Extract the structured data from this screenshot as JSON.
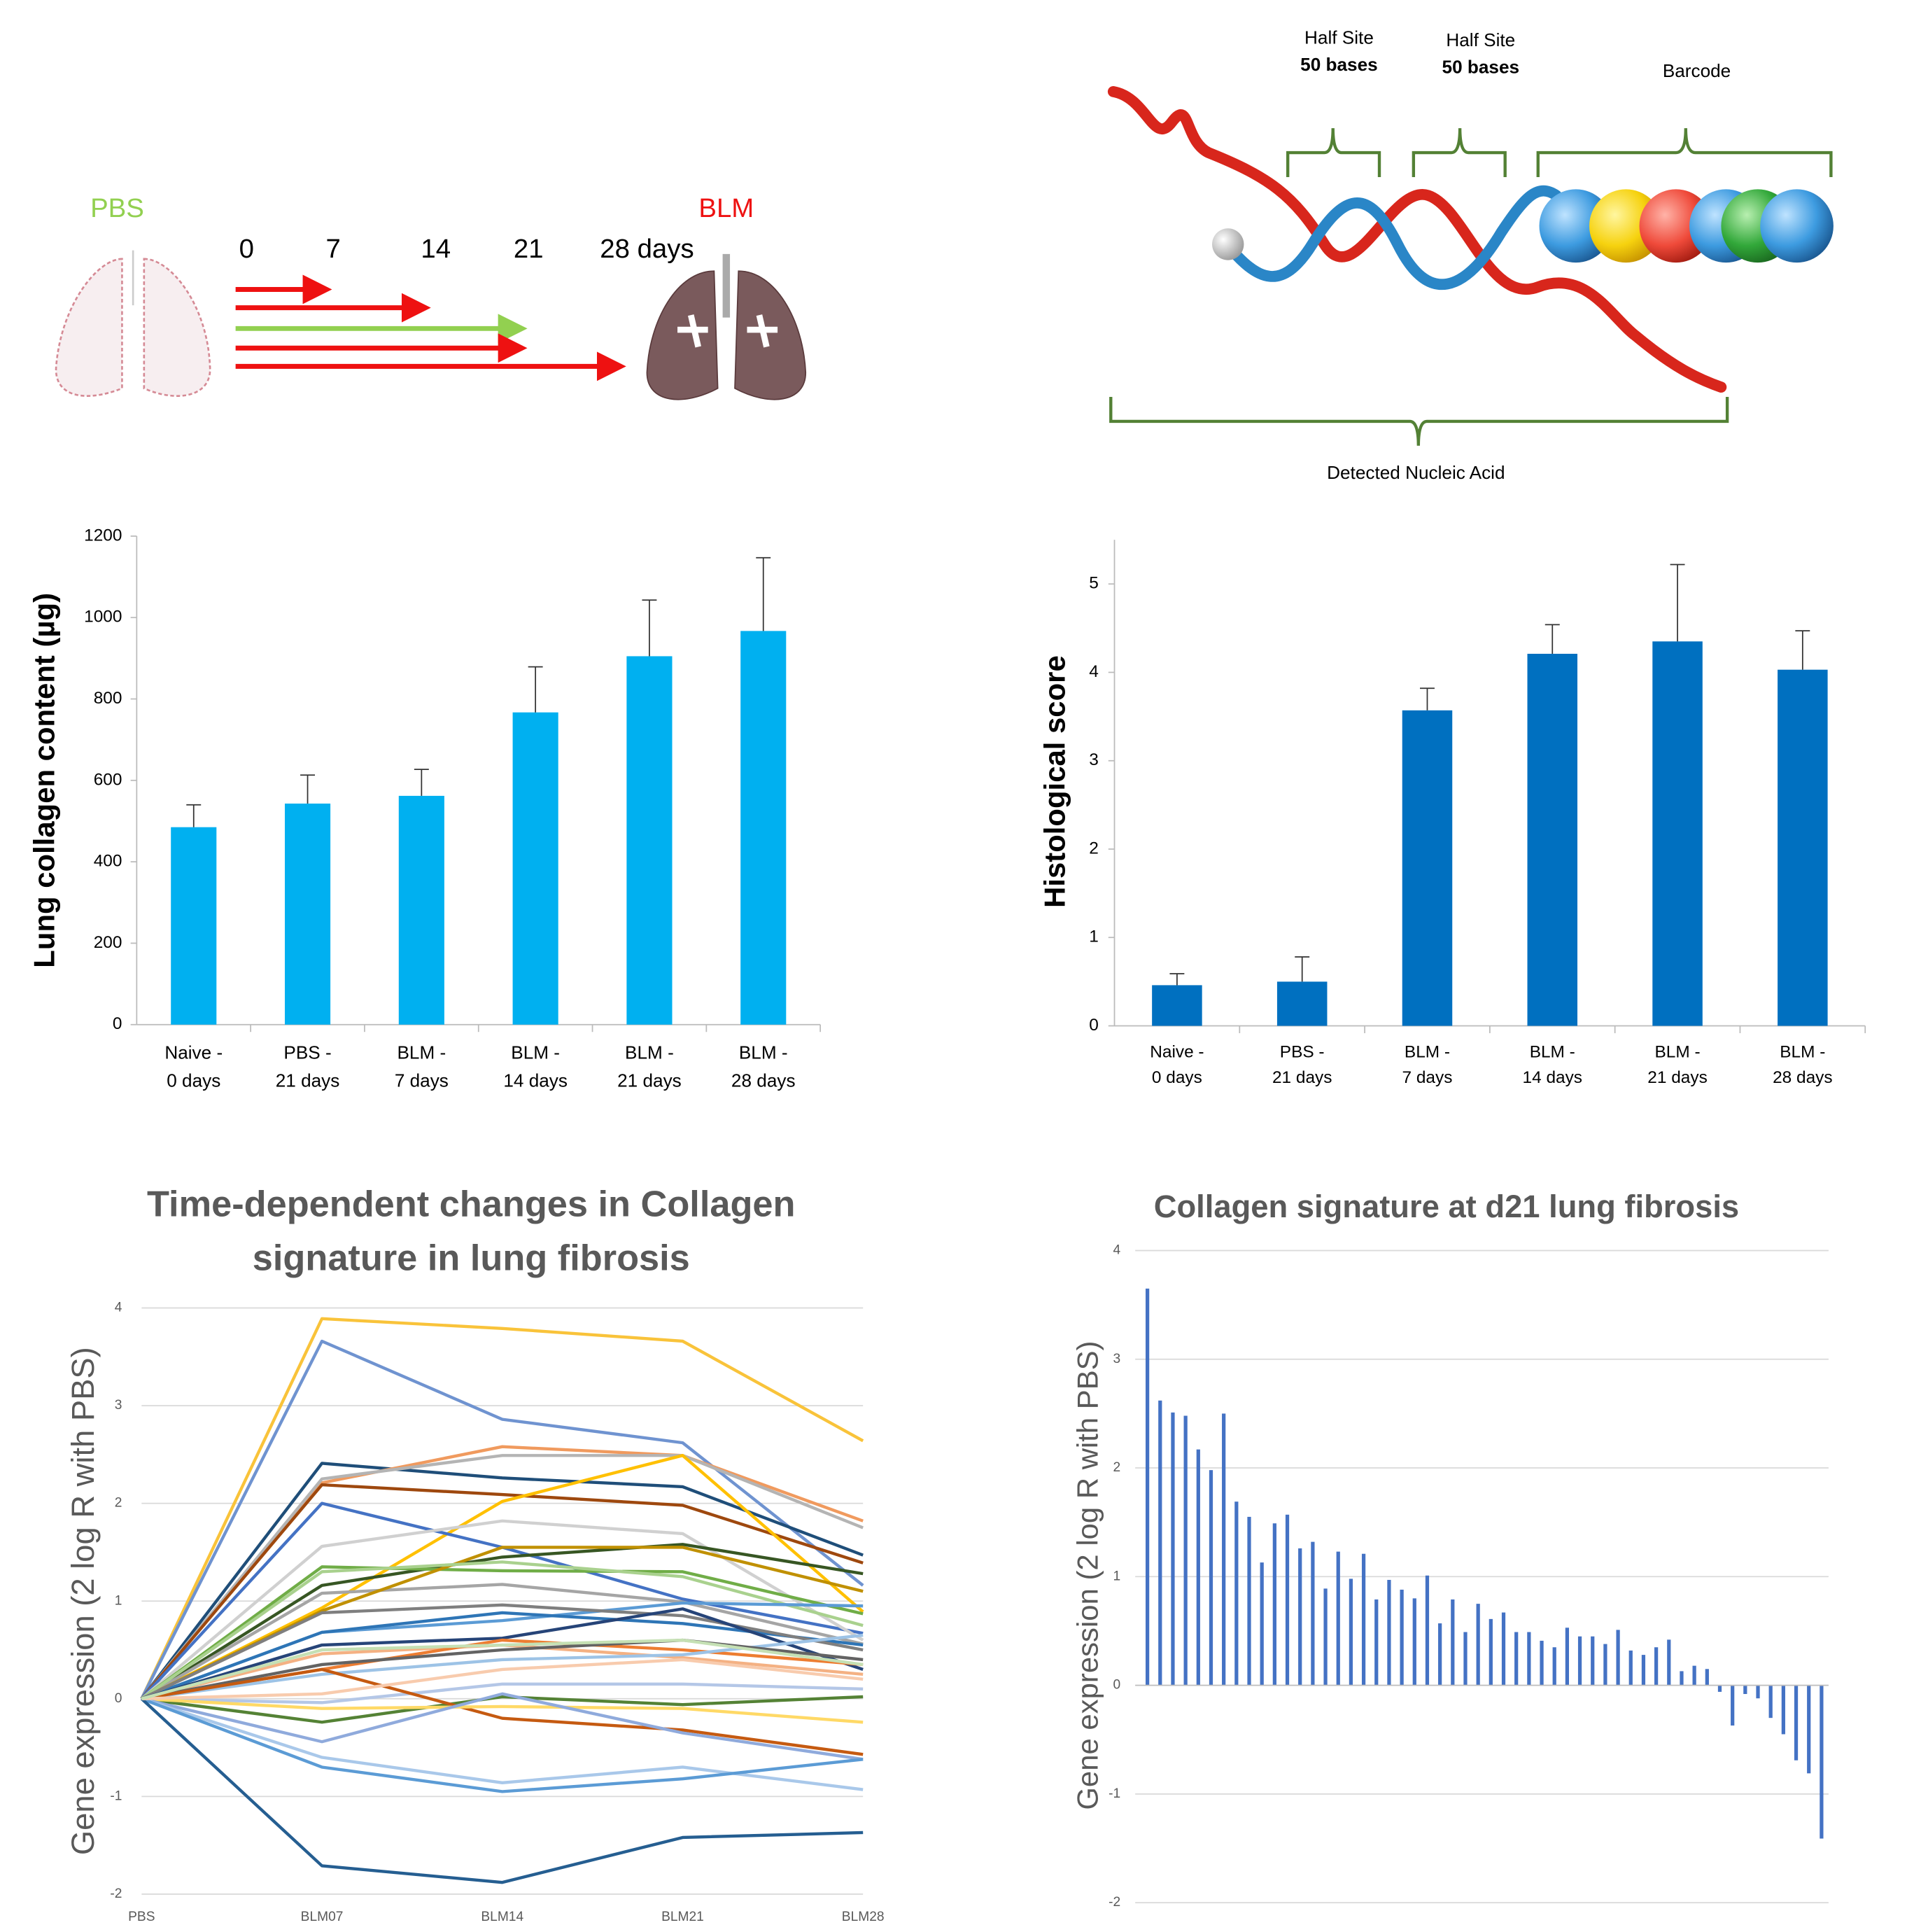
{
  "diagram_a": {
    "left_label": "PBS",
    "right_label": "BLM",
    "timepoints": [
      "0",
      "7",
      "14",
      "21",
      "28 days"
    ]
  },
  "diagram_b": {
    "half_site_1": {
      "title": "Half Site",
      "length": "50 bases"
    },
    "half_site_2": {
      "title": "Half Site",
      "length": "50 bases"
    },
    "barcode": "Barcode",
    "detected": "Detected Nucleic Acid"
  },
  "chart_data": [
    {
      "type": "bar",
      "ylabel": "Lung collagen content (µg)",
      "categories": [
        [
          "Naive -",
          "0 days"
        ],
        [
          "PBS -",
          "21 days"
        ],
        [
          "BLM -",
          "7 days"
        ],
        [
          "BLM -",
          "14 days"
        ],
        [
          "BLM -",
          "21 days"
        ],
        [
          "BLM -",
          "28 days"
        ]
      ],
      "values": [
        485,
        543,
        562,
        767,
        905,
        967
      ],
      "errors": [
        55,
        70,
        65,
        112,
        138,
        180
      ],
      "color": "#00b0f0",
      "ylim": [
        0,
        1200
      ],
      "yticks": [
        0,
        200,
        400,
        600,
        800,
        1000,
        1200
      ],
      "grid": false
    },
    {
      "type": "bar",
      "ylabel": "Histological score",
      "categories": [
        [
          "Naive -",
          "0 days"
        ],
        [
          "PBS -",
          "21 days"
        ],
        [
          "BLM -",
          "7 days"
        ],
        [
          "BLM -",
          "14 days"
        ],
        [
          "BLM -",
          "21 days"
        ],
        [
          "BLM -",
          "28 days"
        ]
      ],
      "values": [
        0.46,
        0.5,
        3.57,
        4.21,
        4.35,
        4.03
      ],
      "errors": [
        0.13,
        0.28,
        0.25,
        0.33,
        0.87,
        0.44
      ],
      "color": "#0070c0",
      "ylim": [
        0,
        5.5
      ],
      "yticks": [
        0,
        1,
        2,
        3,
        4,
        5
      ],
      "grid": false
    },
    {
      "type": "line",
      "title": [
        "Time-dependent changes in Collagen",
        "signature in lung fibrosis"
      ],
      "ylabel": "Gene expression (2 log R with PBS)",
      "categories": [
        "PBS",
        "BLM07",
        "BLM14",
        "BLM21",
        "BLM28"
      ],
      "ylim": [
        -2,
        4
      ],
      "yticks": [
        -2,
        -1,
        0,
        1,
        2,
        3,
        4
      ],
      "grid": true,
      "series": [
        {
          "color": "#f9c33a",
          "values": [
            0,
            3.89,
            3.79,
            3.66,
            2.64
          ]
        },
        {
          "color": "#6f93d0",
          "values": [
            0,
            3.66,
            2.86,
            2.62,
            1.16
          ]
        },
        {
          "color": "#1f4e79",
          "values": [
            0,
            2.41,
            2.26,
            2.17,
            1.47
          ]
        },
        {
          "color": "#f09a5e",
          "values": [
            0,
            2.21,
            2.58,
            2.49,
            1.82
          ]
        },
        {
          "color": "#b4b4b4",
          "values": [
            0,
            2.25,
            2.49,
            2.49,
            1.75
          ]
        },
        {
          "color": "#9e480e",
          "values": [
            0,
            2.19,
            2.09,
            1.98,
            1.39
          ]
        },
        {
          "color": "#ffc000",
          "values": [
            0,
            0.93,
            2.02,
            2.49,
            0.89
          ]
        },
        {
          "color": "#4472c4",
          "values": [
            0,
            2.0,
            1.55,
            1.02,
            0.67
          ]
        },
        {
          "color": "#d0d0d0",
          "values": [
            0,
            1.56,
            1.82,
            1.69,
            0.6
          ]
        },
        {
          "color": "#375623",
          "values": [
            0,
            1.16,
            1.45,
            1.58,
            1.28
          ]
        },
        {
          "color": "#70ad47",
          "values": [
            0,
            1.35,
            1.31,
            1.3,
            0.87
          ]
        },
        {
          "color": "#a5a5a5",
          "values": [
            0,
            1.08,
            1.17,
            0.99,
            0.56
          ]
        },
        {
          "color": "#c09000",
          "values": [
            0,
            0.9,
            1.55,
            1.55,
            1.1
          ]
        },
        {
          "color": "#a9d18e",
          "values": [
            0,
            1.3,
            1.4,
            1.25,
            0.75
          ]
        },
        {
          "color": "#5b9bd5",
          "values": [
            0,
            0.68,
            0.8,
            0.98,
            0.95
          ]
        },
        {
          "color": "#2e75b6",
          "values": [
            0,
            0.68,
            0.88,
            0.77,
            0.55
          ]
        },
        {
          "color": "#7f7f7f",
          "values": [
            0,
            0.88,
            0.96,
            0.85,
            0.5
          ]
        },
        {
          "color": "#f4b183",
          "values": [
            0,
            0.46,
            0.55,
            0.42,
            0.25
          ]
        },
        {
          "color": "#264478",
          "values": [
            0,
            0.55,
            0.62,
            0.92,
            0.3
          ]
        },
        {
          "color": "#ed7d31",
          "values": [
            0,
            0.3,
            0.6,
            0.5,
            0.35
          ]
        },
        {
          "color": "#9dc3e6",
          "values": [
            0,
            0.25,
            0.4,
            0.45,
            0.65
          ]
        },
        {
          "color": "#636363",
          "values": [
            0,
            0.35,
            0.5,
            0.6,
            0.4
          ]
        },
        {
          "color": "#b4c7e7",
          "values": [
            0,
            -0.04,
            0.15,
            0.15,
            0.1
          ]
        },
        {
          "color": "#548235",
          "values": [
            0,
            -0.24,
            0.02,
            -0.06,
            0.02
          ]
        },
        {
          "color": "#c55a11",
          "values": [
            0,
            0.3,
            -0.2,
            -0.32,
            -0.57
          ]
        },
        {
          "color": "#ffd966",
          "values": [
            0,
            -0.1,
            -0.08,
            -0.1,
            -0.24
          ]
        },
        {
          "color": "#8faadc",
          "values": [
            0,
            -0.44,
            0.05,
            -0.35,
            -0.62
          ]
        },
        {
          "color": "#a9c8ea",
          "values": [
            0,
            -0.6,
            -0.86,
            -0.7,
            -0.93
          ]
        },
        {
          "color": "#5b9bd5",
          "values": [
            0,
            -0.7,
            -0.95,
            -0.82,
            -0.62
          ]
        },
        {
          "color": "#255e91",
          "values": [
            0,
            -1.71,
            -1.88,
            -1.42,
            -1.37
          ]
        },
        {
          "color": "#f8cbad",
          "values": [
            0,
            0.05,
            0.3,
            0.4,
            0.2
          ]
        },
        {
          "color": "#c5e0b4",
          "values": [
            0,
            0.5,
            0.55,
            0.6,
            0.35
          ]
        }
      ]
    },
    {
      "type": "bar",
      "title": "Collagen signature at d21 lung fibrosis",
      "ylabel": "Gene expression (2 log R with PBS)",
      "values": [
        3.65,
        2.62,
        2.51,
        2.48,
        2.17,
        1.98,
        2.5,
        1.69,
        1.55,
        1.13,
        1.49,
        1.57,
        1.26,
        1.32,
        0.89,
        1.23,
        0.98,
        1.21,
        0.79,
        0.97,
        0.88,
        0.8,
        1.01,
        0.57,
        0.79,
        0.49,
        0.75,
        0.61,
        0.67,
        0.49,
        0.49,
        0.41,
        0.35,
        0.53,
        0.45,
        0.45,
        0.38,
        0.51,
        0.32,
        0.28,
        0.35,
        0.42,
        0.13,
        0.18,
        0.15,
        -0.06,
        -0.37,
        -0.08,
        -0.12,
        -0.3,
        -0.45,
        -0.69,
        -0.81,
        -1.41
      ],
      "color": "#4472c4",
      "ylim": [
        -2,
        4
      ],
      "yticks": [
        -2,
        -1,
        0,
        1,
        2,
        3,
        4
      ],
      "grid": true
    }
  ]
}
